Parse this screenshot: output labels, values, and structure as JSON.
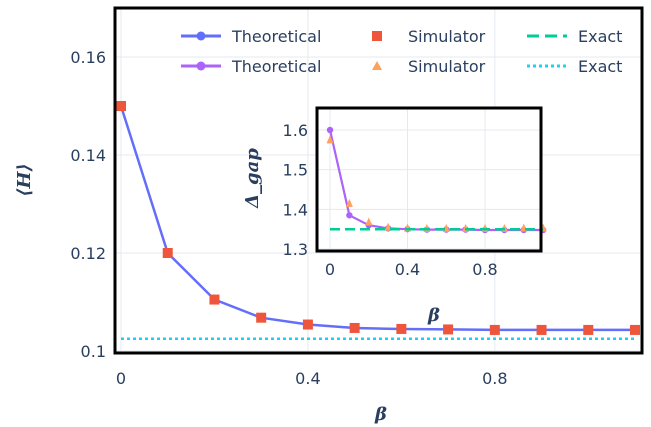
{
  "chart_data": [
    {
      "type": "line",
      "role": "main",
      "xlabel": "β",
      "ylabel": "⟨H⟩",
      "xlim": [
        0,
        1.1
      ],
      "ylim": [
        0.1,
        0.17
      ],
      "xticks": [
        "0",
        "0.4",
        "0.8"
      ],
      "yticks": [
        "0.1",
        "0.12",
        "0.14",
        "0.16"
      ],
      "grid": true,
      "legend_placement": "top-right",
      "series": [
        {
          "name": "Theoretical",
          "kind": "line-markers",
          "color": "#636efa",
          "x": [
            0,
            0.1,
            0.2,
            0.3,
            0.4,
            0.5,
            0.6,
            0.7,
            0.8,
            0.9,
            1.0,
            1.1
          ],
          "y": [
            0.15,
            0.12,
            0.1105,
            0.1068,
            0.1054,
            0.1047,
            0.1045,
            0.1044,
            0.1043,
            0.1043,
            0.1043,
            0.1043
          ]
        },
        {
          "name": "Simulator",
          "kind": "markers",
          "color": "#ef553b",
          "x": [
            0,
            0.1,
            0.2,
            0.3,
            0.4,
            0.5,
            0.6,
            0.7,
            0.8,
            0.9,
            1.0,
            1.1
          ],
          "y": [
            0.15,
            0.12,
            0.1105,
            0.1068,
            0.1054,
            0.1047,
            0.1045,
            0.1044,
            0.1043,
            0.1043,
            0.1043,
            0.1043
          ]
        },
        {
          "name": "Exact",
          "kind": "dotted-line",
          "color": "#19d3f3",
          "x": [
            0,
            1.1
          ],
          "y": [
            0.1025,
            0.1025
          ]
        }
      ]
    },
    {
      "type": "line",
      "role": "inset",
      "xlabel": "β",
      "ylabel": "Δ_gap",
      "xlim": [
        -0.02,
        1.1
      ],
      "ylim": [
        1.3,
        1.65
      ],
      "xticks": [
        "0",
        "0.4",
        "0.8"
      ],
      "yticks": [
        "1.3",
        "1.4",
        "1.5",
        "1.6"
      ],
      "grid": true,
      "series": [
        {
          "name": "Theoretical",
          "kind": "line-markers",
          "color": "#ab63fa",
          "x": [
            0,
            0.1,
            0.2,
            0.3,
            0.4,
            0.5,
            0.6,
            0.7,
            0.8,
            0.9,
            1.0,
            1.1
          ],
          "y": [
            1.6,
            1.385,
            1.36,
            1.352,
            1.35,
            1.349,
            1.349,
            1.349,
            1.348,
            1.348,
            1.348,
            1.348
          ]
        },
        {
          "name": "Simulator",
          "kind": "markers",
          "color": "#ffa15a",
          "x": [
            0,
            0.1,
            0.2,
            0.3,
            0.4,
            0.5,
            0.6,
            0.7,
            0.8,
            0.9,
            1.0,
            1.1
          ],
          "y": [
            1.575,
            1.415,
            1.368,
            1.355,
            1.353,
            1.352,
            1.352,
            1.352,
            1.352,
            1.352,
            1.353,
            1.353
          ]
        },
        {
          "name": "Exact",
          "kind": "dashed-line",
          "color": "#00cc96",
          "x": [
            0,
            1.1
          ],
          "y": [
            1.35,
            1.35
          ]
        }
      ]
    }
  ],
  "legend": {
    "rows": [
      [
        {
          "name": "Theoretical",
          "series_color": "#636efa",
          "kind": "line-markers"
        },
        {
          "name": "Simulator",
          "series_color": "#ef553b",
          "kind": "square"
        },
        {
          "name": "Exact",
          "series_color": "#00cc96",
          "kind": "dashed-line"
        }
      ],
      [
        {
          "name": "Theoretical",
          "series_color": "#ab63fa",
          "kind": "line-markers"
        },
        {
          "name": "Simulator",
          "series_color": "#ffa15a",
          "kind": "triangle"
        },
        {
          "name": "Exact",
          "series_color": "#19d3f3",
          "kind": "dotted-line"
        }
      ]
    ]
  }
}
